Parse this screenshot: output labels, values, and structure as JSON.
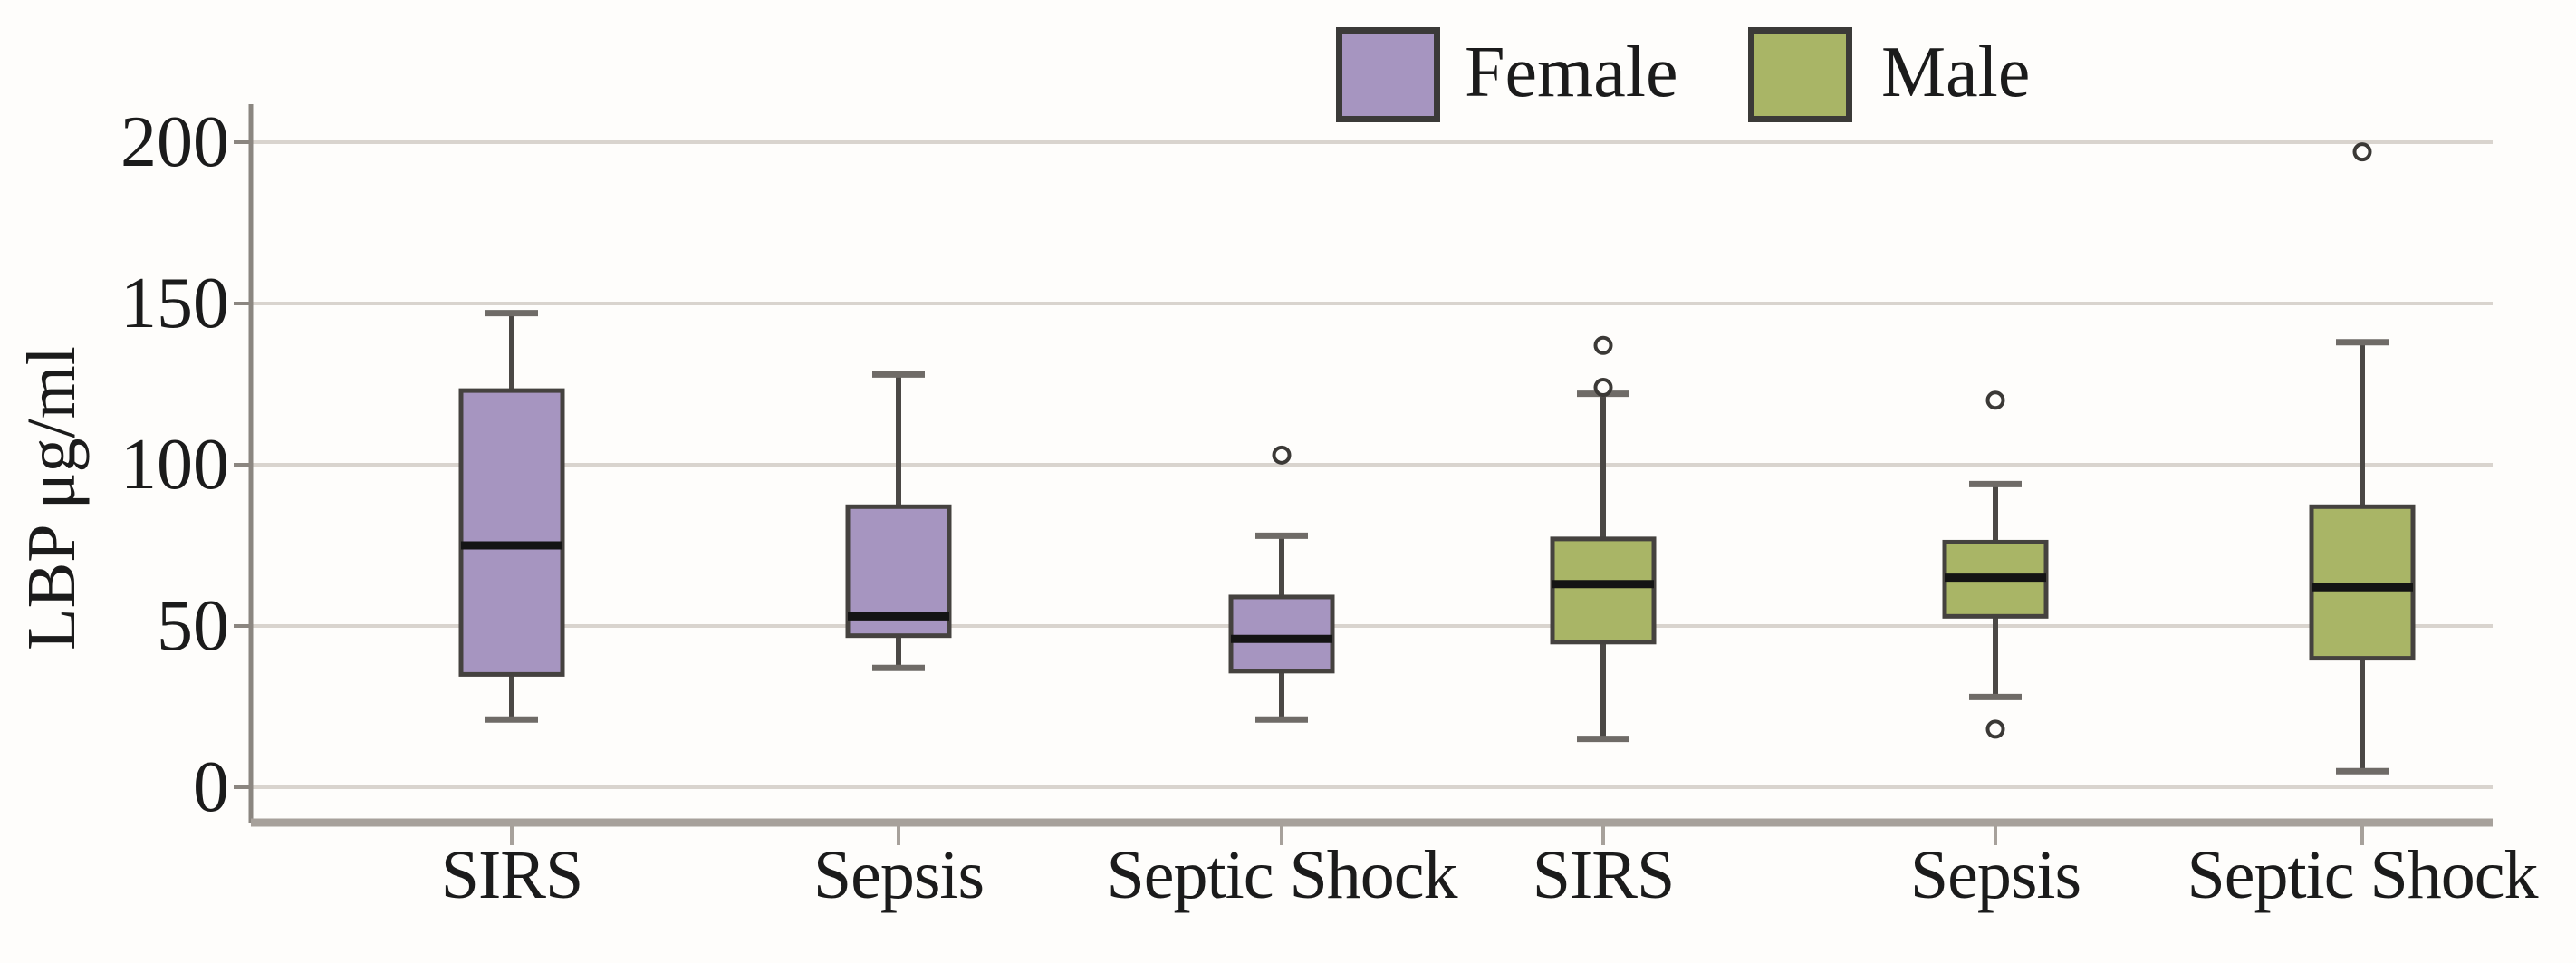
{
  "figure": {
    "kind": "grouped boxplot figure",
    "background": "#fefdfb"
  },
  "colors": {
    "female": "#a695c0",
    "male": "#a9b566",
    "grid": "#d9d4ce",
    "axis": "#8b8680",
    "spine_bottom": "#a7a19b",
    "box_border": "#45423f",
    "median": "#141414",
    "whisker": "#4b4845",
    "whisker_cap": "#6f6b67",
    "outlier": "#3b3936",
    "text": "#1b1b1b",
    "background": "#fefdfb"
  },
  "legend": {
    "position": "top-center",
    "items": [
      {
        "label": "Female",
        "color": "#a695c0"
      },
      {
        "label": "Male",
        "color": "#a9b566"
      }
    ]
  },
  "chart_data": {
    "type": "boxplot",
    "title": "",
    "xlabel": "",
    "ylabel": "LBP μg/ml",
    "ylim": [
      0,
      212
    ],
    "yticks": [
      0,
      50,
      100,
      150,
      200
    ],
    "ytick_labels": [
      "0",
      "50",
      "100",
      "150",
      "200"
    ],
    "grid": "horizontal gridlines on",
    "legend_position": "top-center",
    "categories": [
      "SIRS",
      "Sepsis",
      "Septic Shock",
      "SIRS",
      "Sepsis",
      "Septic Shock"
    ],
    "series": [
      {
        "name": "Female",
        "color": "#a695c0",
        "boxes": [
          {
            "category": "SIRS",
            "whisker_low": 21,
            "q1": 35,
            "median": 75,
            "q3": 123,
            "whisker_high": 147,
            "outliers": []
          },
          {
            "category": "Sepsis",
            "whisker_low": 37,
            "q1": 47,
            "median": 53,
            "q3": 87,
            "whisker_high": 128,
            "outliers": []
          },
          {
            "category": "Septic Shock",
            "whisker_low": 21,
            "q1": 36,
            "median": 46,
            "q3": 59,
            "whisker_high": 78,
            "outliers": [
              103
            ]
          }
        ]
      },
      {
        "name": "Male",
        "color": "#a9b566",
        "boxes": [
          {
            "category": "SIRS",
            "whisker_low": 15,
            "q1": 45,
            "median": 63,
            "q3": 77,
            "whisker_high": 122,
            "outliers": [
              124,
              137
            ]
          },
          {
            "category": "Sepsis",
            "whisker_low": 28,
            "q1": 53,
            "median": 65,
            "q3": 76,
            "whisker_high": 94,
            "outliers": [
              18,
              120
            ]
          },
          {
            "category": "Septic Shock",
            "whisker_low": 5,
            "q1": 40,
            "median": 62,
            "q3": 87,
            "whisker_high": 138,
            "outliers": [
              197
            ]
          }
        ]
      }
    ]
  }
}
